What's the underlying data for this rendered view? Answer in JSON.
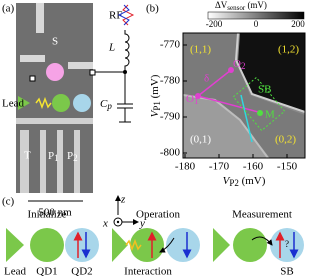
{
  "panels": [
    {
      "label": "(a)",
      "gate_s": "S",
      "lead": "Lead",
      "gate_t": "T",
      "gate_p1": {
        "main": "P",
        "sub": "1"
      },
      "gate_p2": {
        "main": "P",
        "sub": "2"
      },
      "scale_bar": "500 nm",
      "rf": "RF",
      "inductor": "L",
      "capacitor": {
        "main": "C",
        "sub": "p"
      },
      "axis_x": "x",
      "axis_y": "y",
      "axis_z": "z"
    },
    {
      "label": "(b)",
      "colorbar_title": {
        "main": "ΔV",
        "sub": "sensor",
        "unit": " (mV)"
      },
      "colorbar_ticks": [
        "-200",
        "0",
        "200"
      ],
      "y_label": {
        "main": "V",
        "sub": "P1",
        "unit": " (mV)"
      },
      "x_label": {
        "main": "V",
        "sub": "P2",
        "unit": " (mV)"
      },
      "y_ticks": [
        "-770",
        "-780",
        "-790",
        "-800"
      ],
      "x_ticks": [
        "-180",
        "-170",
        "-160",
        "-150"
      ],
      "regions": [
        "(1,1)",
        "(1,2)",
        "(0,1)",
        "(0,2)"
      ],
      "points": {
        "o1": {
          "main": "O",
          "sub": "1"
        },
        "o2": {
          "main": "O",
          "sub": "2"
        },
        "delta": "δ",
        "m": "M",
        "sb": "SB"
      }
    },
    {
      "label": "(c)",
      "steps": [
        "Initialize",
        "Operation",
        "Measurement"
      ],
      "bottom": [
        "Lead",
        "QD1",
        "QD2",
        "Interaction",
        "SB"
      ],
      "unknown": "?"
    }
  ]
}
